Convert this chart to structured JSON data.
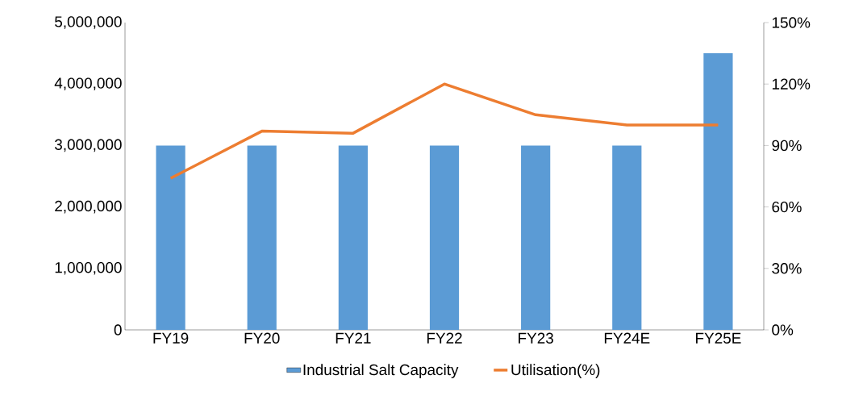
{
  "chart_data": {
    "type": "bar",
    "categories": [
      "FY19",
      "FY20",
      "FY21",
      "FY22",
      "FY23",
      "FY24E",
      "FY25E"
    ],
    "series": [
      {
        "name": "Industrial Salt Capacity",
        "color": "#5b9bd5",
        "values": [
          3000000,
          3000000,
          3000000,
          3000000,
          3000000,
          3000000,
          4500000
        ]
      },
      {
        "name": "Utilisation(%)",
        "type": "line",
        "axis": "y2",
        "color": "#ed7d31",
        "marker": "none",
        "values": [
          74,
          97,
          96,
          120,
          105,
          100,
          100
        ]
      }
    ],
    "ylim": [
      0,
      5000000
    ],
    "yticks": [
      {
        "value": 0,
        "label": "0"
      },
      {
        "value": 1000000,
        "label": "1,000,000"
      },
      {
        "value": 2000000,
        "label": "2,000,000"
      },
      {
        "value": 3000000,
        "label": "3,000,000"
      },
      {
        "value": 4000000,
        "label": "4,000,000"
      },
      {
        "value": 5000000,
        "label": "5,000,000"
      }
    ],
    "y2lim": [
      0,
      150
    ],
    "y2ticks": [
      {
        "value": 0,
        "label": "0%"
      },
      {
        "value": 30,
        "label": "30%"
      },
      {
        "value": 60,
        "label": "60%"
      },
      {
        "value": 90,
        "label": "90%"
      },
      {
        "value": 120,
        "label": "120%"
      },
      {
        "value": 150,
        "label": "150%"
      }
    ],
    "grid": false,
    "legend": "bottom"
  }
}
